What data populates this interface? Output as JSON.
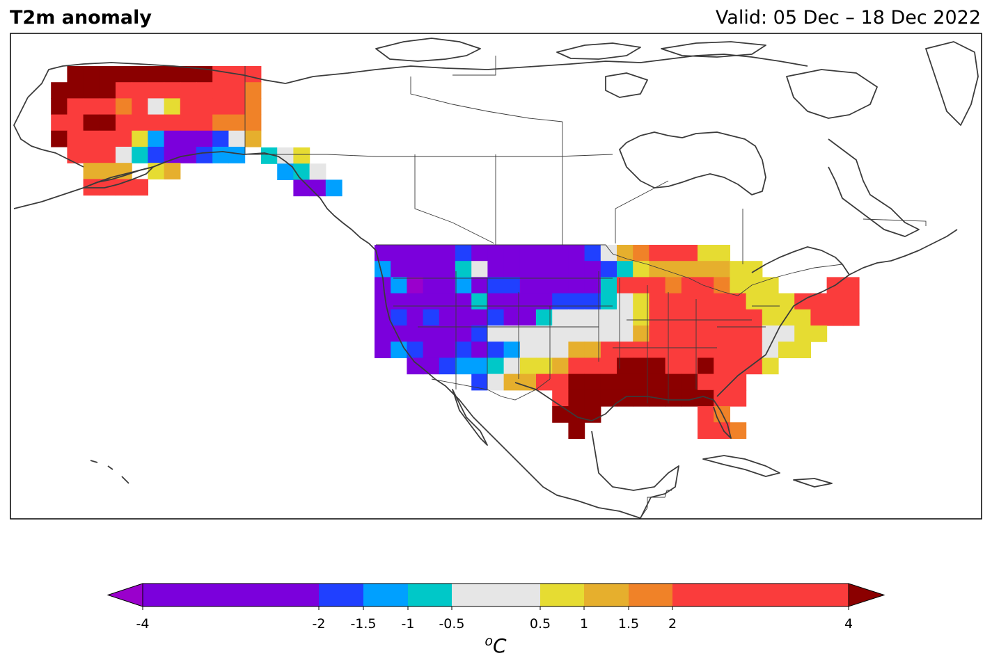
{
  "header": {
    "title": "T2m anomaly",
    "valid": "Valid: 05 Dec – 18 Dec 2022"
  },
  "colorbar": {
    "unit": "oC",
    "ticks": [
      "-4",
      "-2",
      "-1.5",
      "-1",
      "-0.5",
      "0.5",
      "1",
      "1.5",
      "2",
      "4"
    ],
    "bins": [
      {
        "range": "< -4",
        "color": "#9a00cc"
      },
      {
        "range": "-4 to -2",
        "color": "#7b00dc"
      },
      {
        "range": "-2 to -1.5",
        "color": "#2040ff"
      },
      {
        "range": "-1.5 to -1",
        "color": "#00a0ff"
      },
      {
        "range": "-1 to -0.5",
        "color": "#00c8c8"
      },
      {
        "range": "-0.5 to 0.5",
        "color": "#e6e6e6"
      },
      {
        "range": "0.5 to 1",
        "color": "#e6dc32"
      },
      {
        "range": "1 to 1.5",
        "color": "#e6af2d"
      },
      {
        "range": "1.5 to 2",
        "color": "#f08228"
      },
      {
        "range": "2 to 4",
        "color": "#fa3c3c"
      },
      {
        "range": "> 4",
        "color": "#8b0000"
      }
    ]
  },
  "map_data": {
    "grid_cell_deg": 1.0,
    "legend_codes": {
      "P": "< -4",
      "V": "-4 to -2",
      "B": "-2 to -1.5",
      "C": "-1.5 to -1",
      "T": "-1 to -0.5",
      "G": "-0.5 to 0.5",
      "Y": "0.5 to 1",
      "O": "1 to 1.5",
      "A": "1.5 to 2",
      "R": "2 to 4",
      "D": "> 4"
    },
    "regions": [
      {
        "name": "Alaska",
        "rows": [
          "..DDDDDDDDDRRR",
          ".DDDDRRRRRRRRA",
          ".DRRRARGYRRRRA",
          ".RRDDRRRRRRAAA",
          ".DRRRRYCVVVBGO",
          "..RRRGTBVVBCC.",
          "...OOO.YO.....",
          "...RRRR......."
        ]
      },
      {
        "name": "Alaska Panhandle",
        "rows": [
          "TGY..",
          ".CTG.",
          "..VVC"
        ]
      },
      {
        "name": "CONUS",
        "rows": [
          "VVVVVBVVVVVVVBGOARRRYY..........",
          "CVVVVTGVVVVVVVBTYOOOOOYY........",
          "VCPVVCVBBVVVVVTRRRARRAYYY...RR..",
          "VVVVVVTVVVVBBBTGYRRRRRRYYYRRRR..",
          "VBVBVVVBVVTGGGGGYRRRRRRRYYYRRR..",
          "VVVVVVBGGGGGGGGGORRRRRRRGGYY....",
          "VCBVVBVBCGGGOORRRRRRRRRRGYY.....",
          "..VVBCCTGYYORRRDDDRRDRRRY.......",
          "......BGOORRDDDDDDDDRRR.........",
          "...........RDDDDDDDDDRR.........",
          "...........DDD......RA..........",
          "............D.......RRA........."
        ]
      }
    ]
  }
}
